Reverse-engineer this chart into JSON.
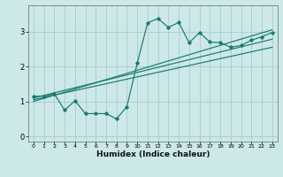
{
  "xlabel": "Humidex (Indice chaleur)",
  "bg_color": "#cce8e8",
  "grid_color": "#aacccc",
  "line_color": "#1a7a6e",
  "xlim": [
    -0.5,
    23.5
  ],
  "ylim": [
    -0.15,
    3.75
  ],
  "xticks": [
    0,
    1,
    2,
    3,
    4,
    5,
    6,
    7,
    8,
    9,
    10,
    11,
    12,
    13,
    14,
    15,
    16,
    17,
    18,
    19,
    20,
    21,
    22,
    23
  ],
  "yticks": [
    0,
    1,
    2,
    3
  ],
  "series1_x": [
    0,
    1,
    2,
    3,
    4,
    5,
    6,
    7,
    8,
    9,
    10,
    11,
    12,
    13,
    14,
    15,
    16,
    17,
    18,
    19,
    20,
    21,
    22,
    23
  ],
  "series1_y": [
    1.15,
    1.15,
    1.22,
    0.75,
    1.02,
    0.65,
    0.65,
    0.65,
    0.5,
    0.85,
    2.1,
    3.25,
    3.37,
    3.12,
    3.26,
    2.68,
    2.97,
    2.7,
    2.68,
    2.55,
    2.6,
    2.75,
    2.85,
    2.97
  ],
  "line2_x": [
    0,
    23
  ],
  "line2_y": [
    1.1,
    2.78
  ],
  "line3_x": [
    0,
    23
  ],
  "line3_y": [
    1.05,
    2.55
  ],
  "line4_x": [
    0,
    23
  ],
  "line4_y": [
    1.0,
    3.05
  ]
}
